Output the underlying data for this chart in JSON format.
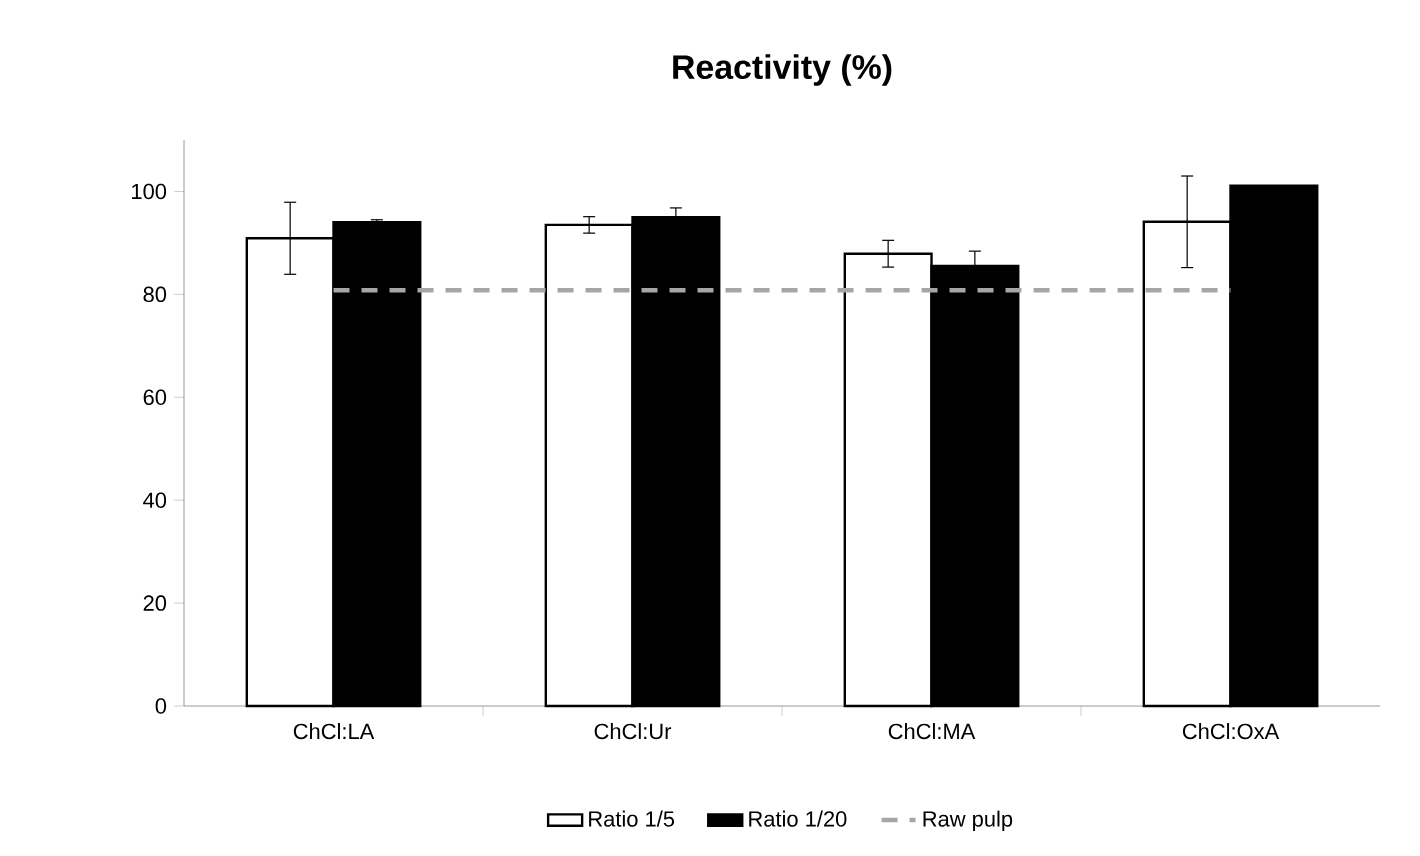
{
  "chart_data": {
    "type": "bar",
    "title": "Reactivity (%)",
    "categories": [
      "ChCl:LA",
      "ChCl:Ur",
      "ChCl:MA",
      "ChCl:OxA"
    ],
    "series": [
      {
        "name": "Ratio 1/5",
        "color": "#ffffff",
        "values": [
          90.9,
          93.5,
          87.9,
          94.1
        ],
        "errors": [
          7.0,
          1.6,
          2.6,
          8.9
        ]
      },
      {
        "name": "Ratio 1/20",
        "color": "#000000",
        "values": [
          94.0,
          95.0,
          85.5,
          101.1
        ],
        "errors": [
          0.5,
          1.8,
          2.9,
          null
        ]
      },
      {
        "name": "Raw pulp",
        "type": "line",
        "color": "#a6a6a6",
        "line_style": "dashed",
        "values": [
          80.8,
          80.8,
          80.8,
          80.8
        ]
      }
    ],
    "ylim": [
      0,
      110
    ],
    "yticks": [
      0,
      20,
      40,
      60,
      80,
      100
    ],
    "legend": "bottom"
  }
}
